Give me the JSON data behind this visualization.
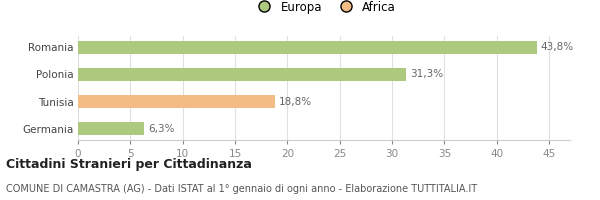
{
  "categories": [
    "Romania",
    "Polonia",
    "Tunisia",
    "Germania"
  ],
  "values": [
    43.8,
    31.3,
    18.8,
    6.3
  ],
  "labels": [
    "43,8%",
    "31,3%",
    "18,8%",
    "6,3%"
  ],
  "bar_colors": [
    "#adc97e",
    "#adc97e",
    "#f2bc84",
    "#adc97e"
  ],
  "legend": [
    {
      "label": "Europa",
      "color": "#adc97e"
    },
    {
      "label": "Africa",
      "color": "#f2bc84"
    }
  ],
  "xlim": [
    0,
    47
  ],
  "xticks": [
    0,
    5,
    10,
    15,
    20,
    25,
    30,
    35,
    40,
    45
  ],
  "title_bold": "Cittadini Stranieri per Cittadinanza",
  "subtitle": "COMUNE DI CAMASTRA (AG) - Dati ISTAT al 1° gennaio di ogni anno - Elaborazione TUTTITALIA.IT",
  "background_color": "#ffffff",
  "bar_height": 0.5,
  "label_fontsize": 7.5,
  "ytick_fontsize": 7.5,
  "xtick_fontsize": 7.5,
  "title_fontsize": 9,
  "subtitle_fontsize": 7
}
